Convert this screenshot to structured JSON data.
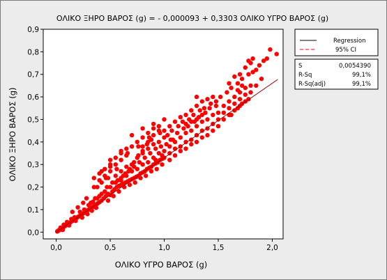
{
  "chart_data": {
    "type": "scatter",
    "title": "ΟΛΙΚΟ ΞΗΡΟ ΒΑΡΟΣ (g) = - 0,000093 + 0,3303 ΟΛΙΚΟ ΥΓΡΟ ΒΑΡΟΣ (g)",
    "xlabel": "ΟΛΙΚΟ ΥΓΡΟ ΒΑΡΟΣ (g)",
    "ylabel": "ΟΛΙΚΟ ΞΗΡΟ ΒΑΡΟΣ (g)",
    "xlim": [
      -0.12,
      2.1
    ],
    "ylim": [
      -0.03,
      0.9
    ],
    "xticks": [
      0.0,
      0.5,
      1.0,
      1.5,
      2.0
    ],
    "xtick_labels": [
      "0,0",
      "0,5",
      "1,0",
      "1,5",
      "2,0"
    ],
    "yticks": [
      0.0,
      0.1,
      0.2,
      0.3,
      0.4,
      0.5,
      0.6,
      0.7,
      0.8,
      0.9
    ],
    "ytick_labels": [
      "0,0",
      "0,1",
      "0,2",
      "0,3",
      "0,4",
      "0,5",
      "0,6",
      "0,7",
      "0,8",
      "0,9"
    ],
    "grid": false,
    "legend_position": "right",
    "regression": {
      "intercept": -9.3e-05,
      "slope": 0.3303,
      "x_range": [
        0.0,
        2.05
      ],
      "color": "#990000"
    },
    "ci_line_color": "#ff0000",
    "point_color": "#ff0000",
    "points": [
      [
        0.01,
        0.003
      ],
      [
        0.015,
        0.005
      ],
      [
        0.02,
        0.007
      ],
      [
        0.025,
        0.008
      ],
      [
        0.03,
        0.01
      ],
      [
        0.035,
        0.012
      ],
      [
        0.04,
        0.014
      ],
      [
        0.045,
        0.015
      ],
      [
        0.05,
        0.017
      ],
      [
        0.055,
        0.018
      ],
      [
        0.06,
        0.02
      ],
      [
        0.065,
        0.021
      ],
      [
        0.07,
        0.024
      ],
      [
        0.075,
        0.025
      ],
      [
        0.08,
        0.027
      ],
      [
        0.085,
        0.029
      ],
      [
        0.09,
        0.03
      ],
      [
        0.095,
        0.032
      ],
      [
        0.1,
        0.034
      ],
      [
        0.11,
        0.037
      ],
      [
        0.12,
        0.04
      ],
      [
        0.13,
        0.043
      ],
      [
        0.14,
        0.047
      ],
      [
        0.15,
        0.05
      ],
      [
        0.16,
        0.053
      ],
      [
        0.17,
        0.057
      ],
      [
        0.18,
        0.06
      ],
      [
        0.19,
        0.063
      ],
      [
        0.2,
        0.067
      ],
      [
        0.21,
        0.07
      ],
      [
        0.22,
        0.073
      ],
      [
        0.23,
        0.077
      ],
      [
        0.24,
        0.08
      ],
      [
        0.25,
        0.083
      ],
      [
        0.26,
        0.086
      ],
      [
        0.27,
        0.09
      ],
      [
        0.28,
        0.093
      ],
      [
        0.29,
        0.096
      ],
      [
        0.3,
        0.1
      ],
      [
        0.31,
        0.103
      ],
      [
        0.32,
        0.107
      ],
      [
        0.33,
        0.11
      ],
      [
        0.34,
        0.112
      ],
      [
        0.35,
        0.116
      ],
      [
        0.36,
        0.12
      ],
      [
        0.37,
        0.122
      ],
      [
        0.38,
        0.126
      ],
      [
        0.39,
        0.13
      ],
      [
        0.4,
        0.133
      ],
      [
        0.04,
        0.02
      ],
      [
        0.07,
        0.033
      ],
      [
        0.1,
        0.045
      ],
      [
        0.14,
        0.058
      ],
      [
        0.17,
        0.066
      ],
      [
        0.22,
        0.09
      ],
      [
        0.26,
        0.1
      ],
      [
        0.3,
        0.12
      ],
      [
        0.34,
        0.135
      ],
      [
        0.38,
        0.15
      ],
      [
        0.06,
        0.01
      ],
      [
        0.12,
        0.03
      ],
      [
        0.18,
        0.05
      ],
      [
        0.24,
        0.065
      ],
      [
        0.29,
        0.08
      ],
      [
        0.33,
        0.095
      ],
      [
        0.37,
        0.108
      ],
      [
        0.32,
        0.13
      ],
      [
        0.36,
        0.15
      ],
      [
        0.4,
        0.16
      ],
      [
        0.42,
        0.14
      ],
      [
        0.44,
        0.15
      ],
      [
        0.46,
        0.16
      ],
      [
        0.48,
        0.17
      ],
      [
        0.5,
        0.165
      ],
      [
        0.52,
        0.18
      ],
      [
        0.54,
        0.19
      ],
      [
        0.56,
        0.2
      ],
      [
        0.58,
        0.205
      ],
      [
        0.6,
        0.21
      ],
      [
        0.62,
        0.215
      ],
      [
        0.64,
        0.22
      ],
      [
        0.66,
        0.225
      ],
      [
        0.68,
        0.23
      ],
      [
        0.7,
        0.235
      ],
      [
        0.72,
        0.24
      ],
      [
        0.74,
        0.245
      ],
      [
        0.76,
        0.25
      ],
      [
        0.78,
        0.26
      ],
      [
        0.8,
        0.265
      ],
      [
        0.82,
        0.27
      ],
      [
        0.84,
        0.28
      ],
      [
        0.86,
        0.285
      ],
      [
        0.88,
        0.29
      ],
      [
        0.9,
        0.3
      ],
      [
        0.92,
        0.305
      ],
      [
        0.94,
        0.31
      ],
      [
        0.96,
        0.32
      ],
      [
        0.98,
        0.325
      ],
      [
        1.0,
        0.33
      ],
      [
        0.45,
        0.18
      ],
      [
        0.5,
        0.2
      ],
      [
        0.55,
        0.22
      ],
      [
        0.6,
        0.24
      ],
      [
        0.65,
        0.25
      ],
      [
        0.7,
        0.27
      ],
      [
        0.75,
        0.28
      ],
      [
        0.8,
        0.3
      ],
      [
        0.85,
        0.31
      ],
      [
        0.9,
        0.33
      ],
      [
        0.95,
        0.35
      ],
      [
        1.0,
        0.36
      ],
      [
        0.48,
        0.14
      ],
      [
        0.53,
        0.16
      ],
      [
        0.58,
        0.18
      ],
      [
        0.63,
        0.2
      ],
      [
        0.68,
        0.21
      ],
      [
        0.73,
        0.22
      ],
      [
        0.78,
        0.24
      ],
      [
        0.83,
        0.25
      ],
      [
        0.88,
        0.27
      ],
      [
        0.93,
        0.28
      ],
      [
        0.98,
        0.3
      ],
      [
        0.42,
        0.17
      ],
      [
        0.47,
        0.2
      ],
      [
        0.52,
        0.22
      ],
      [
        0.57,
        0.23
      ],
      [
        0.62,
        0.25
      ],
      [
        0.67,
        0.27
      ],
      [
        0.72,
        0.29
      ],
      [
        0.77,
        0.31
      ],
      [
        0.82,
        0.33
      ],
      [
        0.87,
        0.35
      ],
      [
        0.92,
        0.37
      ],
      [
        0.97,
        0.38
      ],
      [
        0.55,
        0.25
      ],
      [
        0.6,
        0.27
      ],
      [
        0.65,
        0.29
      ],
      [
        0.7,
        0.3
      ],
      [
        0.75,
        0.33
      ],
      [
        0.8,
        0.35
      ],
      [
        0.85,
        0.37
      ],
      [
        0.9,
        0.39
      ],
      [
        0.95,
        0.4
      ],
      [
        1.0,
        0.42
      ],
      [
        0.4,
        0.23
      ],
      [
        0.45,
        0.25
      ],
      [
        0.5,
        0.27
      ],
      [
        0.55,
        0.3
      ],
      [
        0.6,
        0.32
      ],
      [
        0.65,
        0.34
      ],
      [
        0.7,
        0.38
      ],
      [
        0.75,
        0.4
      ],
      [
        0.8,
        0.42
      ],
      [
        0.85,
        0.44
      ],
      [
        0.9,
        0.46
      ],
      [
        0.95,
        0.47
      ],
      [
        0.35,
        0.24
      ],
      [
        0.4,
        0.26
      ],
      [
        0.5,
        0.3
      ],
      [
        0.6,
        0.36
      ],
      [
        0.7,
        0.43
      ],
      [
        0.8,
        0.46
      ],
      [
        0.9,
        0.48
      ],
      [
        1.0,
        0.5
      ],
      [
        0.46,
        0.24
      ],
      [
        0.56,
        0.28
      ],
      [
        0.66,
        0.35
      ],
      [
        0.76,
        0.38
      ],
      [
        0.86,
        0.42
      ],
      [
        0.96,
        0.44
      ],
      [
        1.05,
        0.35
      ],
      [
        1.1,
        0.37
      ],
      [
        1.15,
        0.38
      ],
      [
        1.2,
        0.4
      ],
      [
        1.25,
        0.41
      ],
      [
        1.3,
        0.43
      ],
      [
        1.35,
        0.45
      ],
      [
        1.4,
        0.46
      ],
      [
        1.45,
        0.48
      ],
      [
        1.5,
        0.5
      ],
      [
        1.05,
        0.38
      ],
      [
        1.1,
        0.4
      ],
      [
        1.15,
        0.42
      ],
      [
        1.2,
        0.44
      ],
      [
        1.25,
        0.45
      ],
      [
        1.3,
        0.47
      ],
      [
        1.35,
        0.49
      ],
      [
        1.4,
        0.5
      ],
      [
        1.45,
        0.52
      ],
      [
        1.5,
        0.53
      ],
      [
        1.05,
        0.32
      ],
      [
        1.1,
        0.34
      ],
      [
        1.15,
        0.36
      ],
      [
        1.2,
        0.37
      ],
      [
        1.25,
        0.39
      ],
      [
        1.3,
        0.4
      ],
      [
        1.35,
        0.42
      ],
      [
        1.4,
        0.43
      ],
      [
        1.45,
        0.45
      ],
      [
        1.08,
        0.41
      ],
      [
        1.12,
        0.44
      ],
      [
        1.18,
        0.46
      ],
      [
        1.22,
        0.47
      ],
      [
        1.28,
        0.49
      ],
      [
        1.32,
        0.51
      ],
      [
        1.38,
        0.53
      ],
      [
        1.42,
        0.55
      ],
      [
        1.48,
        0.56
      ],
      [
        1.03,
        0.43
      ],
      [
        1.07,
        0.45
      ],
      [
        1.13,
        0.47
      ],
      [
        1.17,
        0.49
      ],
      [
        1.23,
        0.5
      ],
      [
        1.27,
        0.52
      ],
      [
        1.33,
        0.54
      ],
      [
        1.37,
        0.55
      ],
      [
        1.43,
        0.57
      ],
      [
        1.0,
        0.45
      ],
      [
        1.05,
        0.47
      ],
      [
        1.1,
        0.49
      ],
      [
        1.15,
        0.51
      ],
      [
        1.2,
        0.52
      ],
      [
        1.25,
        0.54
      ],
      [
        1.3,
        0.56
      ],
      [
        1.5,
        0.47
      ],
      [
        1.55,
        0.5
      ],
      [
        1.6,
        0.52
      ],
      [
        1.65,
        0.54
      ],
      [
        1.7,
        0.56
      ],
      [
        1.75,
        0.58
      ],
      [
        1.55,
        0.53
      ],
      [
        1.6,
        0.55
      ],
      [
        1.65,
        0.57
      ],
      [
        1.7,
        0.59
      ],
      [
        1.75,
        0.61
      ],
      [
        1.8,
        0.62
      ],
      [
        1.55,
        0.56
      ],
      [
        1.6,
        0.58
      ],
      [
        1.65,
        0.6
      ],
      [
        1.7,
        0.62
      ],
      [
        1.75,
        0.64
      ],
      [
        1.8,
        0.65
      ],
      [
        1.58,
        0.62
      ],
      [
        1.62,
        0.64
      ],
      [
        1.68,
        0.66
      ],
      [
        1.72,
        0.68
      ],
      [
        1.78,
        0.7
      ],
      [
        1.82,
        0.71
      ],
      [
        1.52,
        0.6
      ],
      [
        1.48,
        0.58
      ],
      [
        1.62,
        0.52
      ],
      [
        1.68,
        0.55
      ],
      [
        1.72,
        0.57
      ],
      [
        1.78,
        0.59
      ],
      [
        1.85,
        0.65
      ],
      [
        1.9,
        0.68
      ],
      [
        1.85,
        0.72
      ],
      [
        1.88,
        0.74
      ],
      [
        1.92,
        0.76
      ],
      [
        1.95,
        0.77
      ],
      [
        1.75,
        0.73
      ],
      [
        1.8,
        0.75
      ],
      [
        1.7,
        0.7
      ],
      [
        1.65,
        0.69
      ],
      [
        1.6,
        0.66
      ],
      [
        1.78,
        0.76
      ],
      [
        1.82,
        0.77
      ],
      [
        1.98,
        0.81
      ],
      [
        2.04,
        0.79
      ],
      [
        1.68,
        0.63
      ],
      [
        1.72,
        0.65
      ],
      [
        1.4,
        0.59
      ],
      [
        1.35,
        0.58
      ],
      [
        1.45,
        0.6
      ],
      [
        1.3,
        0.6
      ],
      [
        0.55,
        0.33
      ],
      [
        0.6,
        0.35
      ],
      [
        0.65,
        0.37
      ],
      [
        0.5,
        0.32
      ],
      [
        0.45,
        0.28
      ],
      [
        0.38,
        0.2
      ],
      [
        0.42,
        0.22
      ],
      [
        0.48,
        0.24
      ],
      [
        0.35,
        0.2
      ],
      [
        0.28,
        0.15
      ],
      [
        0.25,
        0.13
      ],
      [
        0.2,
        0.11
      ],
      [
        0.15,
        0.09
      ],
      [
        0.9,
        0.43
      ],
      [
        0.95,
        0.45
      ],
      [
        0.85,
        0.4
      ],
      [
        0.8,
        0.38
      ],
      [
        1.02,
        0.39
      ],
      [
        1.06,
        0.41
      ],
      [
        0.98,
        0.34
      ],
      [
        0.92,
        0.32
      ],
      [
        0.6,
        0.23
      ],
      [
        0.64,
        0.26
      ],
      [
        0.68,
        0.28
      ],
      [
        0.72,
        0.31
      ],
      [
        0.76,
        0.34
      ],
      [
        0.8,
        0.36
      ],
      [
        0.84,
        0.39
      ],
      [
        0.88,
        0.41
      ],
      [
        0.42,
        0.27
      ],
      [
        0.5,
        0.29
      ],
      [
        1.2,
        0.48
      ],
      [
        1.25,
        0.49
      ],
      [
        1.3,
        0.5
      ],
      [
        1.35,
        0.52
      ]
    ]
  },
  "legend": {
    "regression_label": "Regression",
    "ci_label": "95% CI"
  },
  "stats": {
    "s_label": "S",
    "s_value": "0,0054390",
    "rsq_label": "R-Sq",
    "rsq_value": "99,1%",
    "rsqadj_label": "R-Sq(adj)",
    "rsqadj_value": "99,1%"
  }
}
